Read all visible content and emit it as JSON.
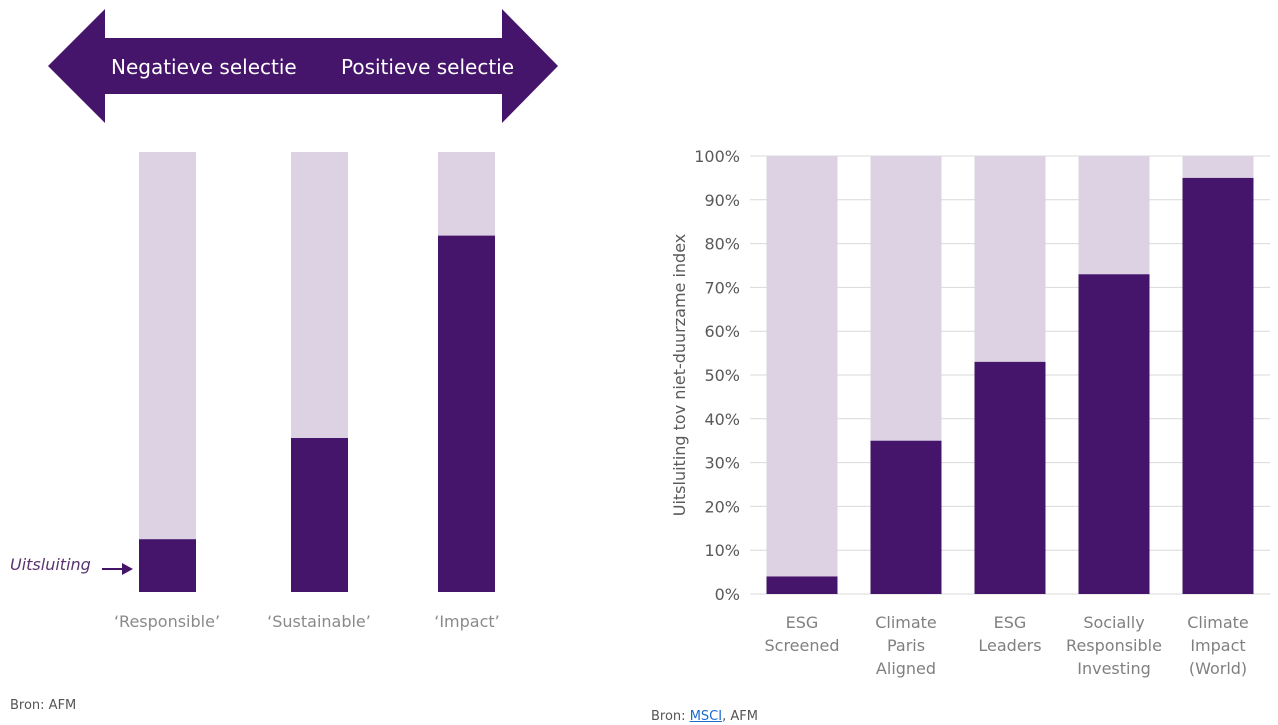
{
  "colors": {
    "dark": "#45146b",
    "light": "#dcd2e3",
    "grid": "#d9d9d9",
    "axis_text": "#595959",
    "category_text": "#808080",
    "label_italic": "#5a3470"
  },
  "left_panel": {
    "arrow": {
      "left_label": "Negatieve selectie",
      "right_label": "Positieve selectie"
    },
    "annotation": "Uitsluiting",
    "source": "Bron: AFM"
  },
  "right_panel": {
    "source_prefix": "Bron: ",
    "source_link": "MSCI",
    "source_suffix": ", AFM"
  },
  "chart_data": [
    {
      "type": "bar",
      "stacked": true,
      "categories": [
        "‘Responsible’",
        "‘Sustainable’",
        "‘Impact’"
      ],
      "series": [
        {
          "values": [
            12,
            35,
            81
          ]
        },
        {
          "values": [
            88,
            65,
            19
          ]
        }
      ],
      "ylim": [
        0,
        100
      ],
      "grid": false,
      "axis_visible": false
    },
    {
      "type": "bar",
      "stacked": true,
      "categories": [
        [
          "ESG",
          "Screened"
        ],
        [
          "Climate",
          "Paris",
          "Aligned"
        ],
        [
          "ESG",
          "Leaders"
        ],
        [
          "Socially",
          "Responsible",
          "Investing"
        ],
        [
          "Climate",
          "Impact",
          "(World)"
        ]
      ],
      "series": [
        {
          "values": [
            4,
            35,
            53,
            73,
            95
          ]
        },
        {
          "values": [
            96,
            65,
            47,
            27,
            5
          ]
        }
      ],
      "ylabel": "Uitsluiting tov niet-duurzame index",
      "ylim": [
        0,
        100
      ],
      "yticks": [
        "0%",
        "10%",
        "20%",
        "30%",
        "40%",
        "50%",
        "60%",
        "70%",
        "80%",
        "90%",
        "100%"
      ],
      "grid": true
    }
  ]
}
